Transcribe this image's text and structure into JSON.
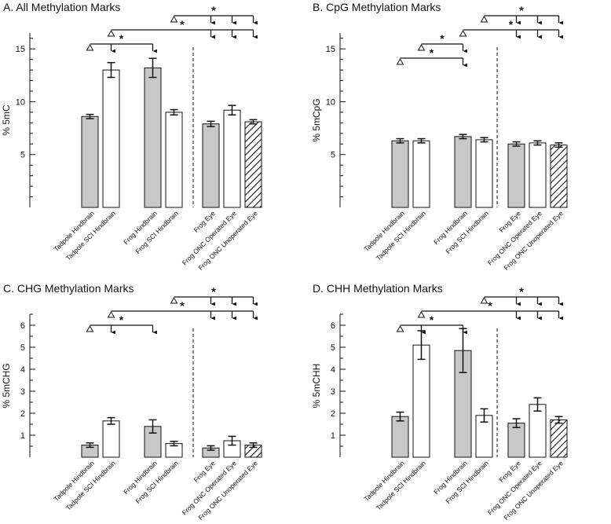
{
  "chart_data": [
    {
      "type": "bar",
      "title": "A. All Methylation Marks",
      "ylabel": "% 5mC",
      "ylim": [
        0,
        16.5
      ],
      "yticks": [
        5,
        10,
        15
      ],
      "categories": [
        "Tadpole Hindbrain",
        "Tadpole SCI Hindbrain",
        "Frog Hindbrain",
        "Frog SCI Hindbrain",
        "Frog Eye",
        "Frog ONC Operated Eye",
        "Frog ONC Unoperated Eye"
      ],
      "values": [
        8.6,
        13.0,
        13.2,
        9.0,
        7.9,
        9.2,
        8.1
      ],
      "errors": [
        0.2,
        0.7,
        0.9,
        0.25,
        0.25,
        0.45,
        0.2
      ],
      "fills": [
        "gray",
        "white",
        "gray",
        "white",
        "gray",
        "white",
        "hatch"
      ],
      "comparisons": [
        {
          "from": 0,
          "to": [
            1,
            2
          ],
          "label": "*"
        },
        {
          "from": 1,
          "to": [
            4,
            5,
            6
          ],
          "label": "*"
        },
        {
          "from": 3,
          "to": [
            4,
            5,
            6
          ],
          "label": "*"
        }
      ]
    },
    {
      "type": "bar",
      "title": "B. CpG Methylation Marks",
      "ylabel": "% 5mCpG",
      "ylim": [
        0,
        16.5
      ],
      "yticks": [
        5,
        10,
        15
      ],
      "categories": [
        "Tadpole Hindbrain",
        "Tadpole SCI Hindbrain",
        "Frog Hindbrain",
        "Frog SCI Hindbrain",
        "Frog Eye",
        "Frog ONC Operated Eye",
        "Frog ONC Unoperated Eye"
      ],
      "values": [
        6.3,
        6.3,
        6.7,
        6.4,
        6.0,
        6.1,
        5.9
      ],
      "errors": [
        0.2,
        0.2,
        0.2,
        0.2,
        0.2,
        0.2,
        0.2
      ],
      "fills": [
        "gray",
        "white",
        "gray",
        "white",
        "gray",
        "white",
        "hatch"
      ],
      "comparisons": [
        {
          "from": 0,
          "to": [
            2
          ],
          "label": "*"
        },
        {
          "from": 1,
          "to": [
            2
          ],
          "label": "*"
        },
        {
          "from": 2,
          "to": [
            4,
            5,
            6
          ],
          "label": "*"
        },
        {
          "from": 3,
          "to": [
            4,
            5,
            6
          ],
          "label": "*"
        }
      ]
    },
    {
      "type": "bar",
      "title": "C. CHG Methylation Marks",
      "ylabel": "% 5mCHG",
      "ylim": [
        0,
        6.5
      ],
      "yticks": [
        1,
        2,
        3,
        4,
        5,
        6
      ],
      "categories": [
        "Tadpole Hindbrain",
        "Tadpole SCI Hindbrain",
        "Frog Hindbrain",
        "Frog SCI Hindbrain",
        "Frog Eye",
        "Frog ONC Operated Eye",
        "Frog ONC Unoperated Eye"
      ],
      "values": [
        0.55,
        1.65,
        1.4,
        0.62,
        0.42,
        0.75,
        0.55
      ],
      "errors": [
        0.1,
        0.15,
        0.3,
        0.1,
        0.1,
        0.2,
        0.1
      ],
      "fills": [
        "gray",
        "white",
        "gray",
        "white",
        "gray",
        "white",
        "hatch"
      ],
      "comparisons": [
        {
          "from": 0,
          "to": [
            1,
            2
          ],
          "label": "*"
        },
        {
          "from": 1,
          "to": [
            4,
            5,
            6
          ],
          "label": "*"
        },
        {
          "from": 3,
          "to": [
            4,
            5,
            6
          ],
          "label": "*"
        }
      ]
    },
    {
      "type": "bar",
      "title": "D. CHH Methylation Marks",
      "ylabel": "% 5mCHH",
      "ylim": [
        0,
        6.5
      ],
      "yticks": [
        1,
        2,
        3,
        4,
        5,
        6
      ],
      "categories": [
        "Tadpole Hindbrain",
        "Tadpole SCI Hindbrain",
        "Frog Hindbrain",
        "Frog SCI Hindbrain",
        "Frog Eye",
        "Frog ONC Operated Eye",
        "Frog ONC Unoperated Eye"
      ],
      "values": [
        1.85,
        5.1,
        4.85,
        1.9,
        1.55,
        2.4,
        1.7
      ],
      "errors": [
        0.2,
        0.65,
        1.0,
        0.3,
        0.2,
        0.3,
        0.15
      ],
      "fills": [
        "gray",
        "white",
        "gray",
        "white",
        "gray",
        "white",
        "hatch"
      ],
      "comparisons": [
        {
          "from": 0,
          "to": [
            1,
            2
          ],
          "label": "*"
        },
        {
          "from": 1,
          "to": [
            4,
            5,
            6
          ],
          "label": "*"
        },
        {
          "from": 3,
          "to": [
            4,
            5,
            6
          ],
          "label": "*"
        }
      ]
    }
  ]
}
